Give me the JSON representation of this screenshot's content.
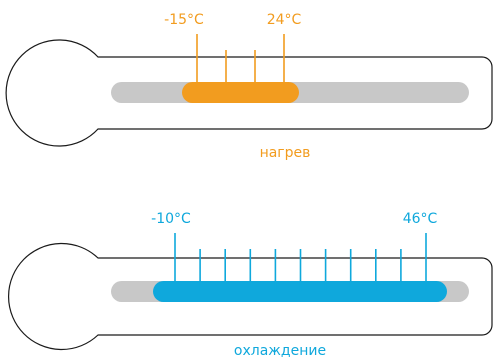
{
  "colors": {
    "outline": "#1a1a1a",
    "track": "#c8c8c8",
    "heat": "#f29c1f",
    "cool": "#0fa8dc",
    "background": "#ffffff"
  },
  "thermometers": [
    {
      "id": "heating",
      "min_label": "-15°C",
      "max_label": "24°C",
      "caption": "нагрев",
      "color_key": "heat",
      "tick_count": 4
    },
    {
      "id": "cooling",
      "min_label": "-10°C",
      "max_label": "46°C",
      "caption": "охлаждение",
      "color_key": "cool",
      "tick_count": 11
    }
  ]
}
